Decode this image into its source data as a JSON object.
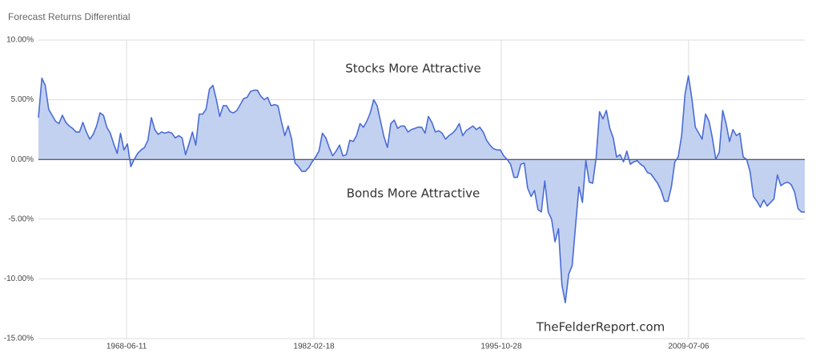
{
  "chart_data": {
    "type": "area",
    "title": "Forecast Returns Differential",
    "annotations": [
      "Stocks More Attractive",
      "Bonds More Attractive",
      "TheFelderReport.com"
    ],
    "color": "#4a6cd4",
    "fill": "#c3d1f1",
    "grid": true,
    "xlim": [
      1962,
      2018
    ],
    "xticks": [
      {
        "value": 1968.44,
        "label": "1968-06-11"
      },
      {
        "value": 1982.13,
        "label": "1982-02-18"
      },
      {
        "value": 1995.82,
        "label": "1995-10-28"
      },
      {
        "value": 2009.51,
        "label": "2009-07-06"
      }
    ],
    "ylim": [
      -15,
      10
    ],
    "yticks": [
      {
        "value": -15,
        "label": "-15.00%"
      },
      {
        "value": -10,
        "label": "-10.00%"
      },
      {
        "value": -5,
        "label": "-5.00%"
      },
      {
        "value": 0,
        "label": "0.00%"
      },
      {
        "value": 5,
        "label": "5.00%"
      },
      {
        "value": 10,
        "label": "10.00%"
      }
    ],
    "x": [
      1962,
      1962.25,
      1962.5,
      1962.75,
      1963,
      1963.25,
      1963.5,
      1963.75,
      1964,
      1964.25,
      1964.5,
      1964.75,
      1965,
      1965.25,
      1965.5,
      1965.75,
      1966,
      1966.25,
      1966.5,
      1966.75,
      1967,
      1967.25,
      1967.5,
      1967.75,
      1968,
      1968.25,
      1968.5,
      1968.75,
      1969,
      1969.25,
      1969.5,
      1969.75,
      1970,
      1970.25,
      1970.5,
      1970.75,
      1971,
      1971.25,
      1971.5,
      1971.75,
      1972,
      1972.25,
      1972.5,
      1972.75,
      1973,
      1973.25,
      1973.5,
      1973.75,
      1974,
      1974.25,
      1974.5,
      1974.75,
      1975,
      1975.25,
      1975.5,
      1975.75,
      1976,
      1976.25,
      1976.5,
      1976.75,
      1977,
      1977.25,
      1977.5,
      1977.75,
      1978,
      1978.25,
      1978.5,
      1978.75,
      1979,
      1979.25,
      1979.5,
      1979.75,
      1980,
      1980.25,
      1980.5,
      1980.75,
      1981,
      1981.25,
      1981.5,
      1981.75,
      1982,
      1982.25,
      1982.5,
      1982.75,
      1983,
      1983.25,
      1983.5,
      1983.75,
      1984,
      1984.25,
      1984.5,
      1984.75,
      1985,
      1985.25,
      1985.5,
      1985.75,
      1986,
      1986.25,
      1986.5,
      1986.75,
      1987,
      1987.25,
      1987.5,
      1987.75,
      1988,
      1988.25,
      1988.5,
      1988.75,
      1989,
      1989.25,
      1989.5,
      1989.75,
      1990,
      1990.25,
      1990.5,
      1990.75,
      1991,
      1991.25,
      1991.5,
      1991.75,
      1992,
      1992.25,
      1992.5,
      1992.75,
      1993,
      1993.25,
      1993.5,
      1993.75,
      1994,
      1994.25,
      1994.5,
      1994.75,
      1995,
      1995.25,
      1995.5,
      1995.75,
      1996,
      1996.25,
      1996.5,
      1996.75,
      1997,
      1997.25,
      1997.5,
      1997.75,
      1998,
      1998.25,
      1998.5,
      1998.75,
      1999,
      1999.25,
      1999.5,
      1999.75,
      2000,
      2000.25,
      2000.5,
      2000.75,
      2001,
      2001.25,
      2001.5,
      2001.75,
      2002,
      2002.25,
      2002.5,
      2002.75,
      2003,
      2003.25,
      2003.5,
      2003.75,
      2004,
      2004.25,
      2004.5,
      2004.75,
      2005,
      2005.25,
      2005.5,
      2005.75,
      2006,
      2006.25,
      2006.5,
      2006.75,
      2007,
      2007.25,
      2007.5,
      2007.75,
      2008,
      2008.25,
      2008.5,
      2008.75,
      2009,
      2009.25,
      2009.5,
      2009.75,
      2010,
      2010.25,
      2010.5,
      2010.75,
      2011,
      2011.25,
      2011.5,
      2011.75,
      2012,
      2012.25,
      2012.5,
      2012.75,
      2013,
      2013.25,
      2013.5,
      2013.75,
      2014,
      2014.25,
      2014.5,
      2014.75,
      2015,
      2015.25,
      2015.5,
      2015.75,
      2016,
      2016.25,
      2016.5,
      2016.75,
      2017,
      2017.25,
      2017.5,
      2017.75,
      2018
    ],
    "values": [
      3.5,
      6.8,
      6.2,
      4.2,
      3.7,
      3.2,
      3.0,
      3.7,
      3.1,
      2.8,
      2.6,
      2.3,
      2.3,
      3.1,
      2.3,
      1.7,
      2.1,
      2.8,
      3.9,
      3.7,
      2.7,
      2.2,
      1.3,
      0.5,
      2.2,
      0.8,
      1.3,
      -0.6,
      0.0,
      0.5,
      0.8,
      1.0,
      1.6,
      3.5,
      2.5,
      2.1,
      2.3,
      2.2,
      2.3,
      2.2,
      1.8,
      2.0,
      1.8,
      0.4,
      1.3,
      2.3,
      1.2,
      3.8,
      3.8,
      4.2,
      5.9,
      6.2,
      5.0,
      3.6,
      4.5,
      4.5,
      4.0,
      3.9,
      4.1,
      4.6,
      5.1,
      5.2,
      5.7,
      5.8,
      5.8,
      5.3,
      5.0,
      5.2,
      4.5,
      4.6,
      4.5,
      3.2,
      2.0,
      2.8,
      1.7,
      -0.3,
      -0.6,
      -1.0,
      -1.0,
      -0.7,
      -0.2,
      0.2,
      0.7,
      2.2,
      1.8,
      1.0,
      0.3,
      0.7,
      1.2,
      0.3,
      0.4,
      1.6,
      1.5,
      2.0,
      3.0,
      2.7,
      3.2,
      3.9,
      5.0,
      4.5,
      3.2,
      1.9,
      1.0,
      3.0,
      3.3,
      2.6,
      2.8,
      2.8,
      2.3,
      2.5,
      2.6,
      2.7,
      2.7,
      2.2,
      3.6,
      3.1,
      2.3,
      2.4,
      2.2,
      1.7,
      2.0,
      2.2,
      2.5,
      3.0,
      2.0,
      2.4,
      2.6,
      2.8,
      2.5,
      2.7,
      2.3,
      1.6,
      1.2,
      0.9,
      0.8,
      0.8,
      0.3,
      0.0,
      -0.4,
      -1.5,
      -1.5,
      -0.4,
      -0.3,
      -2.4,
      -3.1,
      -2.6,
      -4.2,
      -4.4,
      -1.8,
      -4.4,
      -5.0,
      -6.9,
      -5.8,
      -10.5,
      -12.0,
      -9.6,
      -8.9,
      -5.5,
      -2.3,
      -3.6,
      -0.1,
      -1.9,
      -2.0,
      0.1,
      4.0,
      3.4,
      4.1,
      2.6,
      1.8,
      0.2,
      0.4,
      -0.2,
      0.7,
      -0.4,
      -0.2,
      -0.1,
      -0.4,
      -0.6,
      -1.1,
      -1.2,
      -1.6,
      -2.0,
      -2.6,
      -3.5,
      -3.5,
      -2.3,
      -0.2,
      0.2,
      2.0,
      5.5,
      7.0,
      5.1,
      2.7,
      2.2,
      1.7,
      3.8,
      3.2,
      1.8,
      0.0,
      0.6,
      4.1,
      3.0,
      1.5,
      2.5,
      2.0,
      2.2,
      0.2,
      0.0,
      -1.0,
      -3.1,
      -3.5,
      -4.0,
      -3.4,
      -3.9,
      -3.6,
      -3.3,
      -1.3,
      -2.2,
      -2.0,
      -1.9,
      -2.1,
      -2.7,
      -4.1,
      -4.4,
      -4.4
    ]
  }
}
